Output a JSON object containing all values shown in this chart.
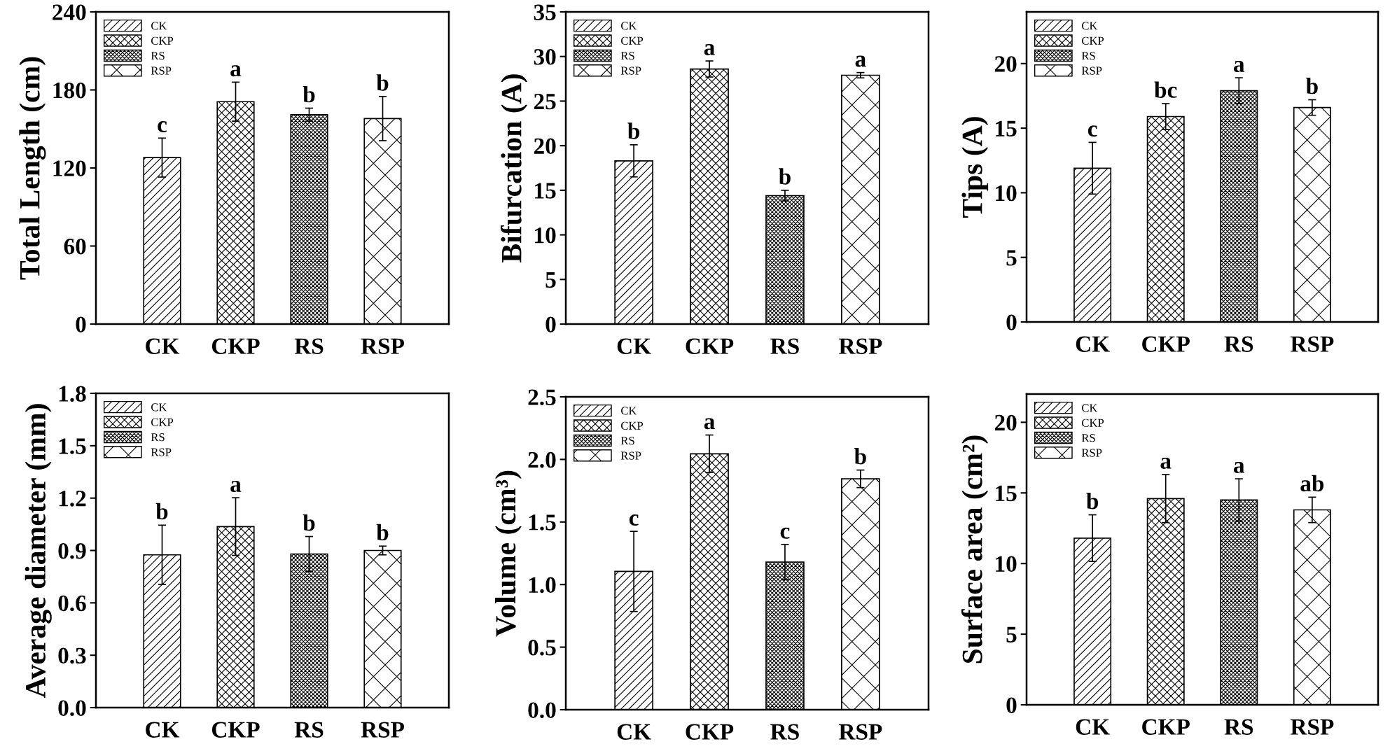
{
  "chart_data": [
    {
      "type": "bar",
      "ylabel": "Total Length (cm)",
      "categories": [
        "CK",
        "CKP",
        "RS",
        "RSP"
      ],
      "stacked": true,
      "ylim": [
        0,
        240
      ],
      "yticks": [
        0,
        60,
        120,
        180,
        240
      ],
      "legend": "top left",
      "grid": false,
      "series": [
        {
          "name": "CK",
          "values": [
            128,
            null,
            null,
            null
          ],
          "errors": [
            15,
            null,
            null,
            null
          ],
          "value_labels": [
            "c",
            null,
            null,
            null
          ]
        },
        {
          "name": "CKP",
          "values": [
            null,
            171,
            null,
            null
          ],
          "errors": [
            null,
            15,
            null,
            null
          ],
          "value_labels": [
            null,
            "a",
            null,
            null
          ]
        },
        {
          "name": "RS",
          "values": [
            null,
            null,
            161,
            null
          ],
          "errors": [
            null,
            null,
            5,
            null
          ],
          "value_labels": [
            null,
            null,
            "b",
            null
          ]
        },
        {
          "name": "RSP",
          "values": [
            null,
            null,
            null,
            158
          ],
          "errors": [
            null,
            null,
            null,
            17
          ],
          "value_labels": [
            null,
            null,
            null,
            "b"
          ]
        }
      ]
    },
    {
      "type": "bar",
      "ylabel": "Bifurcation (A)",
      "categories": [
        "CK",
        "CKP",
        "RS",
        "RSP"
      ],
      "stacked": true,
      "ylim": [
        0,
        35
      ],
      "yticks": [
        0,
        5,
        10,
        15,
        20,
        25,
        30,
        35
      ],
      "legend": "top left",
      "grid": false,
      "series": [
        {
          "name": "CK",
          "values": [
            18.3,
            null,
            null,
            null
          ],
          "errors": [
            1.8,
            null,
            null,
            null
          ],
          "value_labels": [
            "b",
            null,
            null,
            null
          ]
        },
        {
          "name": "CKP",
          "values": [
            null,
            28.6,
            null,
            null
          ],
          "errors": [
            null,
            0.9,
            null,
            null
          ],
          "value_labels": [
            null,
            "a",
            null,
            null
          ]
        },
        {
          "name": "RS",
          "values": [
            null,
            null,
            14.4,
            null
          ],
          "errors": [
            null,
            null,
            0.6,
            null
          ],
          "value_labels": [
            null,
            null,
            "b",
            null
          ]
        },
        {
          "name": "RSP",
          "values": [
            null,
            null,
            null,
            27.9
          ],
          "errors": [
            null,
            null,
            null,
            0.3
          ],
          "value_labels": [
            null,
            null,
            null,
            "a"
          ]
        }
      ]
    },
    {
      "type": "bar",
      "ylabel": "Tips (A)",
      "categories": [
        "CK",
        "CKP",
        "RS",
        "RSP"
      ],
      "stacked": true,
      "ylim": [
        0,
        24
      ],
      "yticks": [
        0,
        5,
        10,
        15,
        20
      ],
      "legend": "top left",
      "grid": false,
      "series": [
        {
          "name": "CK",
          "values": [
            11.9,
            null,
            null,
            null
          ],
          "errors": [
            2,
            null,
            null,
            null
          ],
          "value_labels": [
            "c",
            null,
            null,
            null
          ]
        },
        {
          "name": "CKP",
          "values": [
            null,
            15.9,
            null,
            null
          ],
          "errors": [
            null,
            1,
            null,
            null
          ],
          "value_labels": [
            null,
            "bc",
            null,
            null
          ]
        },
        {
          "name": "RS",
          "values": [
            null,
            null,
            17.9,
            null
          ],
          "errors": [
            null,
            null,
            1,
            null
          ],
          "value_labels": [
            null,
            null,
            "a",
            null
          ]
        },
        {
          "name": "RSP",
          "values": [
            null,
            null,
            null,
            16.6
          ],
          "errors": [
            null,
            null,
            null,
            0.6
          ],
          "value_labels": [
            null,
            null,
            null,
            "b"
          ]
        }
      ]
    },
    {
      "type": "bar",
      "ylabel": "Average diameter (mm)",
      "categories": [
        "CK",
        "CKP",
        "RS",
        "RSP"
      ],
      "stacked": true,
      "ylim": [
        0,
        1.8
      ],
      "yticks": [
        {
          "value": 0,
          "label": "0.0"
        },
        0.3,
        0.6,
        0.9,
        1.2,
        1.5,
        1.8
      ],
      "legend": "top left",
      "grid": false,
      "series": [
        {
          "name": "CK",
          "values": [
            0.875,
            null,
            null,
            null
          ],
          "errors": [
            0.17,
            null,
            null,
            null
          ],
          "value_labels": [
            "b",
            null,
            null,
            null
          ]
        },
        {
          "name": "CKP",
          "values": [
            null,
            1.037,
            null,
            null
          ],
          "errors": [
            null,
            0.165,
            null,
            null
          ],
          "value_labels": [
            null,
            "a",
            null,
            null
          ]
        },
        {
          "name": "RS",
          "values": [
            null,
            null,
            0.88,
            null
          ],
          "errors": [
            null,
            null,
            0.1,
            null
          ],
          "value_labels": [
            null,
            null,
            "b",
            null
          ]
        },
        {
          "name": "RSP",
          "values": [
            null,
            null,
            null,
            0.9
          ],
          "errors": [
            null,
            null,
            null,
            0.025
          ],
          "value_labels": [
            null,
            null,
            null,
            "b"
          ]
        }
      ]
    },
    {
      "type": "bar",
      "ylabel": "Volume (cm³)",
      "categories": [
        "CK",
        "CKP",
        "RS",
        "RSP"
      ],
      "stacked": true,
      "ylim": [
        0,
        2.5
      ],
      "yticks": [
        {
          "value": 0,
          "label": "0.0"
        },
        0.5,
        {
          "value": 1,
          "label": "1.0"
        },
        1.5,
        {
          "value": 2,
          "label": "2.0"
        },
        2.5
      ],
      "legend": "top left",
      "grid": false,
      "series": [
        {
          "name": "CK",
          "values": [
            1.105,
            null,
            null,
            null
          ],
          "errors": [
            0.32,
            null,
            null,
            null
          ],
          "value_labels": [
            "c",
            null,
            null,
            null
          ]
        },
        {
          "name": "CKP",
          "values": [
            null,
            2.045,
            null,
            null
          ],
          "errors": [
            null,
            0.15,
            null,
            null
          ],
          "value_labels": [
            null,
            "a",
            null,
            null
          ]
        },
        {
          "name": "RS",
          "values": [
            null,
            null,
            1.18,
            null
          ],
          "errors": [
            null,
            null,
            0.14,
            null
          ],
          "value_labels": [
            null,
            null,
            "c",
            null
          ]
        },
        {
          "name": "RSP",
          "values": [
            null,
            null,
            null,
            1.845
          ],
          "errors": [
            null,
            null,
            null,
            0.07
          ],
          "value_labels": [
            null,
            null,
            null,
            "b"
          ]
        }
      ]
    },
    {
      "type": "bar",
      "ylabel": "Surface area (cm²)",
      "categories": [
        "CK",
        "CKP",
        "RS",
        "RSP"
      ],
      "stacked": true,
      "ylim": [
        0,
        22
      ],
      "yticks": [
        0,
        5,
        10,
        15,
        20
      ],
      "legend": "top left",
      "grid": false,
      "series": [
        {
          "name": "CK",
          "values": [
            11.8,
            null,
            null,
            null
          ],
          "errors": [
            1.65,
            null,
            null,
            null
          ],
          "value_labels": [
            "b",
            null,
            null,
            null
          ]
        },
        {
          "name": "CKP",
          "values": [
            null,
            14.6,
            null,
            null
          ],
          "errors": [
            null,
            1.7,
            null,
            null
          ],
          "value_labels": [
            null,
            "a",
            null,
            null
          ]
        },
        {
          "name": "RS",
          "values": [
            null,
            null,
            14.5,
            null
          ],
          "errors": [
            null,
            null,
            1.5,
            null
          ],
          "value_labels": [
            null,
            null,
            "a",
            null
          ]
        },
        {
          "name": "RSP",
          "values": [
            null,
            null,
            null,
            13.8
          ],
          "errors": [
            null,
            null,
            null,
            0.9
          ],
          "value_labels": [
            null,
            null,
            null,
            "ab"
          ]
        }
      ]
    }
  ]
}
